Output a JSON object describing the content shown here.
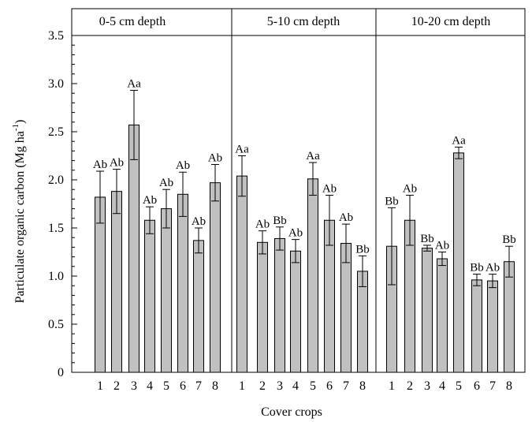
{
  "chart_data": {
    "type": "bar",
    "title": "",
    "xlabel": "Cover crops",
    "ylabel": "Particulate organic carbon (Mg ha",
    "ylabel_superscript": "-1",
    "ylabel_close": ")",
    "ylim": [
      0,
      3.5
    ],
    "yticks": [
      "0",
      "0.5",
      "1.0",
      "1.5",
      "2.0",
      "2.5",
      "3.0",
      "3.5"
    ],
    "ytick_values": [
      0,
      0.5,
      1.0,
      1.5,
      2.0,
      2.5,
      3.0,
      3.5
    ],
    "bar_color": "#c0c0c0",
    "error_bars": true,
    "grid": false,
    "legend": "none",
    "panels": [
      {
        "title": "0-5 cm depth",
        "categories": [
          "1",
          "2",
          "3",
          "4",
          "5",
          "6",
          "7",
          "8"
        ],
        "values": [
          1.82,
          1.88,
          2.57,
          1.58,
          1.7,
          1.85,
          1.37,
          1.97
        ],
        "errors": [
          0.27,
          0.23,
          0.36,
          0.14,
          0.2,
          0.23,
          0.13,
          0.19
        ],
        "labels": [
          "Ab",
          "Ab",
          "Aa",
          "Ab",
          "Ab",
          "Ab",
          "Ab",
          "Ab"
        ]
      },
      {
        "title": "5-10 cm depth",
        "categories": [
          "1",
          "2",
          "3",
          "4",
          "5",
          "6",
          "7",
          "8"
        ],
        "values": [
          2.04,
          1.35,
          1.39,
          1.26,
          2.01,
          1.58,
          1.34,
          1.05
        ],
        "errors": [
          0.21,
          0.12,
          0.12,
          0.12,
          0.17,
          0.26,
          0.2,
          0.16
        ],
        "labels": [
          "Aa",
          "Ab",
          "Bb",
          "Ab",
          "Aa",
          "Ab",
          "Ab",
          "Bb"
        ]
      },
      {
        "title": "10-20 cm depth",
        "categories": [
          "1",
          "2",
          "3",
          "4",
          "5",
          "6",
          "7",
          "8"
        ],
        "values": [
          1.31,
          1.58,
          1.29,
          1.18,
          2.28,
          0.96,
          0.95,
          1.15
        ],
        "errors": [
          0.4,
          0.26,
          0.03,
          0.07,
          0.06,
          0.06,
          0.07,
          0.16
        ],
        "labels": [
          "Bb",
          "Ab",
          "Bb",
          "Ab",
          "Aa",
          "Bb",
          "Ab",
          "Bb"
        ]
      }
    ]
  }
}
